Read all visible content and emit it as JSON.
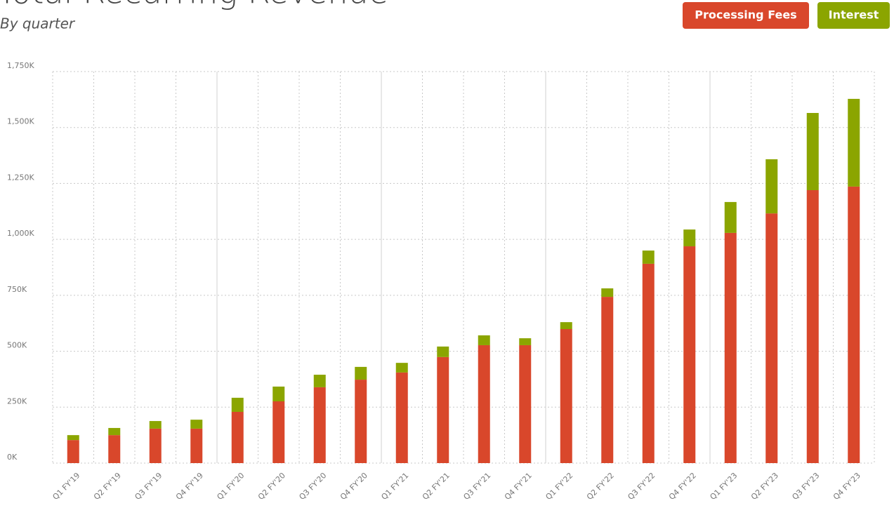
{
  "chart_data": {
    "type": "stacked_bar",
    "title": "Total Recurring Revenue",
    "subtitle": "By quarter",
    "categories": [
      "Q1 FY'19",
      "Q2 FY'19",
      "Q3 FY'19",
      "Q4 FY'19",
      "Q1 FY'20",
      "Q2 FY'20",
      "Q3 FY'20",
      "Q4 FY'20",
      "Q1 FY'21",
      "Q2 FY'21",
      "Q3 FY'21",
      "Q4 FY'21",
      "Q1 FY'22",
      "Q2 FY'22",
      "Q3 FY'22",
      "Q4 FY'22",
      "Q1 FY'23",
      "Q2 FY'23",
      "Q3 FY'23",
      "Q4 FY'23"
    ],
    "series": [
      {
        "name": "Processing Fees",
        "color": "#d9472b",
        "values": [
          103,
          125,
          154,
          154,
          229,
          276,
          339,
          373,
          405,
          474,
          527,
          527,
          599,
          743,
          891,
          969,
          1029,
          1116,
          1220,
          1236
        ]
      },
      {
        "name": "Interest",
        "color": "#8ba500",
        "values": [
          22,
          32,
          34,
          40,
          63,
          66,
          56,
          57,
          43,
          47,
          44,
          31,
          31,
          38,
          59,
          75,
          138,
          242,
          345,
          392
        ]
      }
    ],
    "ylim": [
      0,
      1750
    ],
    "yticks": [
      {
        "value": 0,
        "label": "0K"
      },
      {
        "value": 250,
        "label": "250K"
      },
      {
        "value": 500,
        "label": "500K"
      },
      {
        "value": 750,
        "label": "750K"
      },
      {
        "value": 1000,
        "label": "1,000K"
      },
      {
        "value": 1250,
        "label": "1,250K"
      },
      {
        "value": 1500,
        "label": "1,500K"
      },
      {
        "value": 1750,
        "label": "1,750K"
      }
    ],
    "grid": true
  }
}
